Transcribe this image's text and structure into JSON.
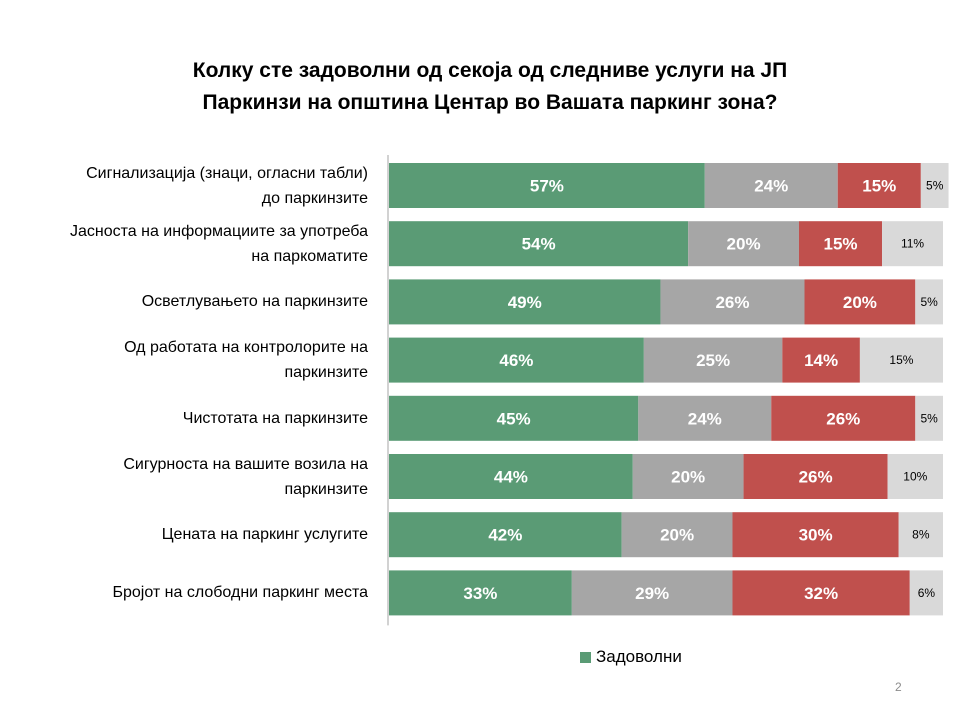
{
  "title": {
    "line1": "Колку сте задоволни од секоја од следниве услуги на ЈП",
    "line2": "Паркинзи на општина Центар во Вашата паркинг зона?"
  },
  "chart_data": {
    "type": "bar",
    "orientation": "horizontal",
    "stacked": true,
    "categories": [
      [
        "Сигнализација  (знаци, огласни табли)",
        "до паркинзите"
      ],
      [
        "Јасноста на информациите  за употреба",
        "на паркоматите"
      ],
      [
        "Осветлувањето на паркинзите"
      ],
      [
        "Од работата на контролорите на",
        "паркинзите"
      ],
      [
        "Чистотата на паркинзите"
      ],
      [
        "Сигурноста на вашите возила на",
        "паркинзите"
      ],
      [
        "Цената на паркинг услугите"
      ],
      [
        "Бројот на слободни паркинг места"
      ]
    ],
    "series": [
      {
        "name": "Задоволни",
        "color": "#5a9b75",
        "label_color": "#ffffff",
        "bold": true,
        "values": [
          57,
          54,
          49,
          46,
          45,
          44,
          42,
          33
        ]
      },
      {
        "name": "",
        "color": "#a6a6a6",
        "label_color": "#ffffff",
        "bold": true,
        "values": [
          24,
          20,
          26,
          25,
          24,
          20,
          20,
          29
        ]
      },
      {
        "name": "",
        "color": "#c0504d",
        "label_color": "#ffffff",
        "bold": true,
        "values": [
          15,
          15,
          20,
          14,
          26,
          26,
          30,
          32
        ]
      },
      {
        "name": "",
        "color": "#d9d9d9",
        "label_color": "#000000",
        "bold": false,
        "values": [
          5,
          11,
          5,
          15,
          5,
          10,
          8,
          6
        ]
      }
    ],
    "value_suffix": "%",
    "xlim": [
      0,
      100
    ],
    "legend": "bottom",
    "grid": false
  },
  "legend_items": [
    {
      "name": "Задоволни",
      "color": "#5a9b75"
    }
  ],
  "page_number": "2"
}
